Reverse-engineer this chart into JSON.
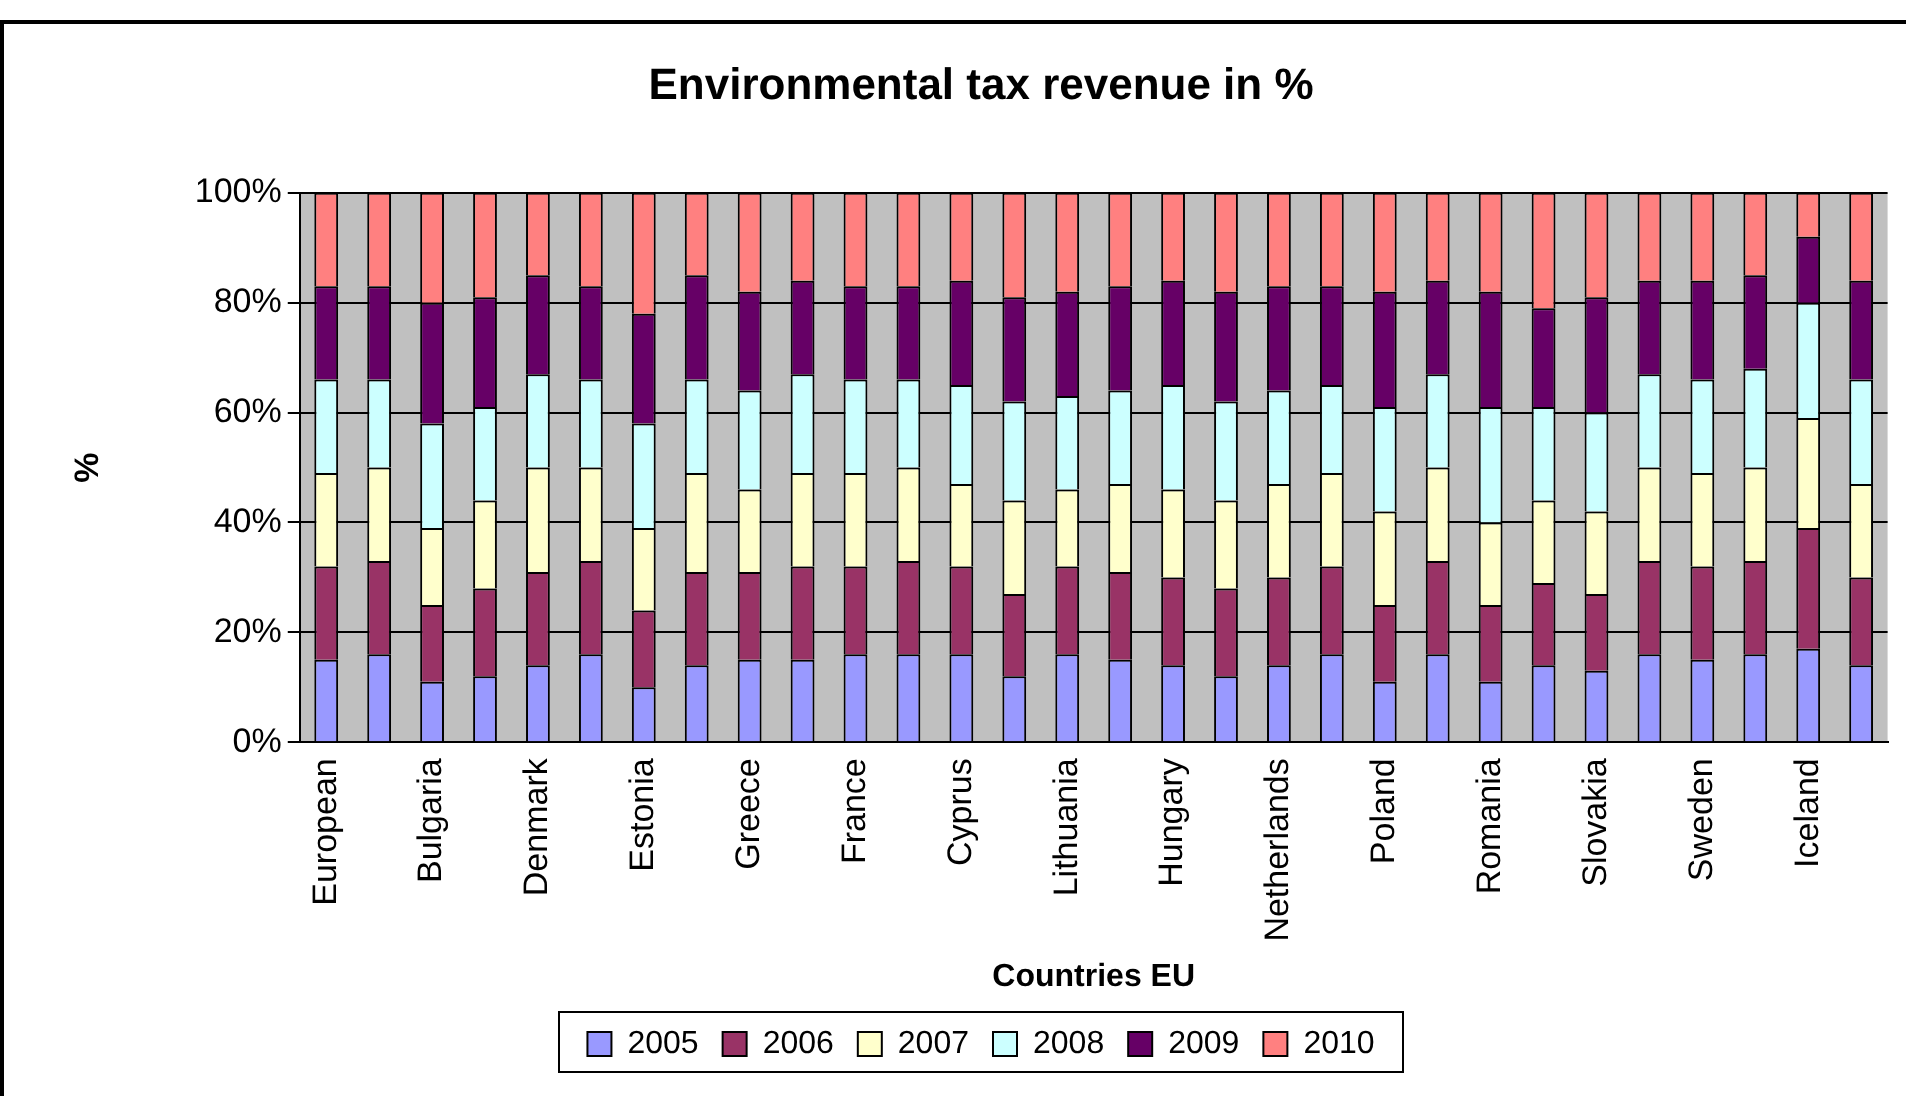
{
  "chart_data": {
    "type": "bar",
    "title": "Environmental tax revenue in %",
    "xlabel": "Countries EU",
    "ylabel": "%",
    "categories": [
      "European",
      null,
      "Bulgaria",
      null,
      "Denmark",
      null,
      "Estonia",
      null,
      "Greece",
      null,
      "France",
      null,
      "Cyprus",
      null,
      "Lithuania",
      null,
      "Hungary",
      null,
      "Netherlands",
      null,
      "Poland",
      null,
      "Romania",
      null,
      "Slovakia",
      null,
      "Sweden",
      null,
      "Iceland",
      null
    ],
    "stacked": true,
    "ylim": [
      0,
      100
    ],
    "yticks": [
      {
        "value": 0,
        "label": "0%"
      },
      {
        "value": 20,
        "label": "20%"
      },
      {
        "value": 40,
        "label": "40%"
      },
      {
        "value": 60,
        "label": "60%"
      },
      {
        "value": 80,
        "label": "80%"
      },
      {
        "value": 100,
        "label": "100%"
      }
    ],
    "grid": "y",
    "legend": "bottom",
    "series": [
      {
        "name": "2005",
        "color": "#9999ff",
        "values": [
          15,
          16,
          11,
          12,
          14,
          16,
          10,
          14,
          15,
          15,
          16,
          16,
          16,
          12,
          16,
          15,
          14,
          12,
          14,
          16,
          11,
          16,
          11,
          14,
          13,
          16,
          15,
          16,
          17,
          14
        ]
      },
      {
        "name": "2006",
        "color": "#993366",
        "values": [
          17,
          17,
          14,
          16,
          17,
          17,
          14,
          17,
          16,
          17,
          16,
          17,
          16,
          15,
          16,
          16,
          16,
          16,
          16,
          16,
          14,
          17,
          14,
          15,
          14,
          17,
          17,
          17,
          22,
          16
        ]
      },
      {
        "name": "2007",
        "color": "#ffffcc",
        "values": [
          17,
          17,
          14,
          16,
          19,
          17,
          15,
          18,
          15,
          17,
          17,
          17,
          15,
          17,
          14,
          16,
          16,
          16,
          17,
          17,
          17,
          17,
          15,
          15,
          15,
          17,
          17,
          17,
          20,
          17
        ]
      },
      {
        "name": "2008",
        "color": "#ccffff",
        "values": [
          17,
          16,
          19,
          17,
          17,
          16,
          19,
          17,
          18,
          18,
          17,
          16,
          18,
          18,
          17,
          17,
          19,
          18,
          17,
          16,
          19,
          17,
          21,
          17,
          18,
          17,
          17,
          18,
          21,
          19
        ]
      },
      {
        "name": "2009",
        "color": "#660066",
        "values": [
          17,
          17,
          22,
          20,
          18,
          17,
          20,
          19,
          18,
          17,
          17,
          17,
          19,
          19,
          19,
          19,
          19,
          20,
          19,
          18,
          21,
          17,
          21,
          18,
          21,
          17,
          18,
          17,
          12,
          18
        ]
      },
      {
        "name": "2010",
        "color": "#ff8080",
        "values": [
          17,
          17,
          20,
          19,
          15,
          17,
          22,
          15,
          18,
          16,
          17,
          17,
          16,
          19,
          18,
          17,
          16,
          18,
          17,
          17,
          18,
          16,
          18,
          21,
          19,
          16,
          16,
          15,
          8,
          16
        ]
      }
    ]
  }
}
